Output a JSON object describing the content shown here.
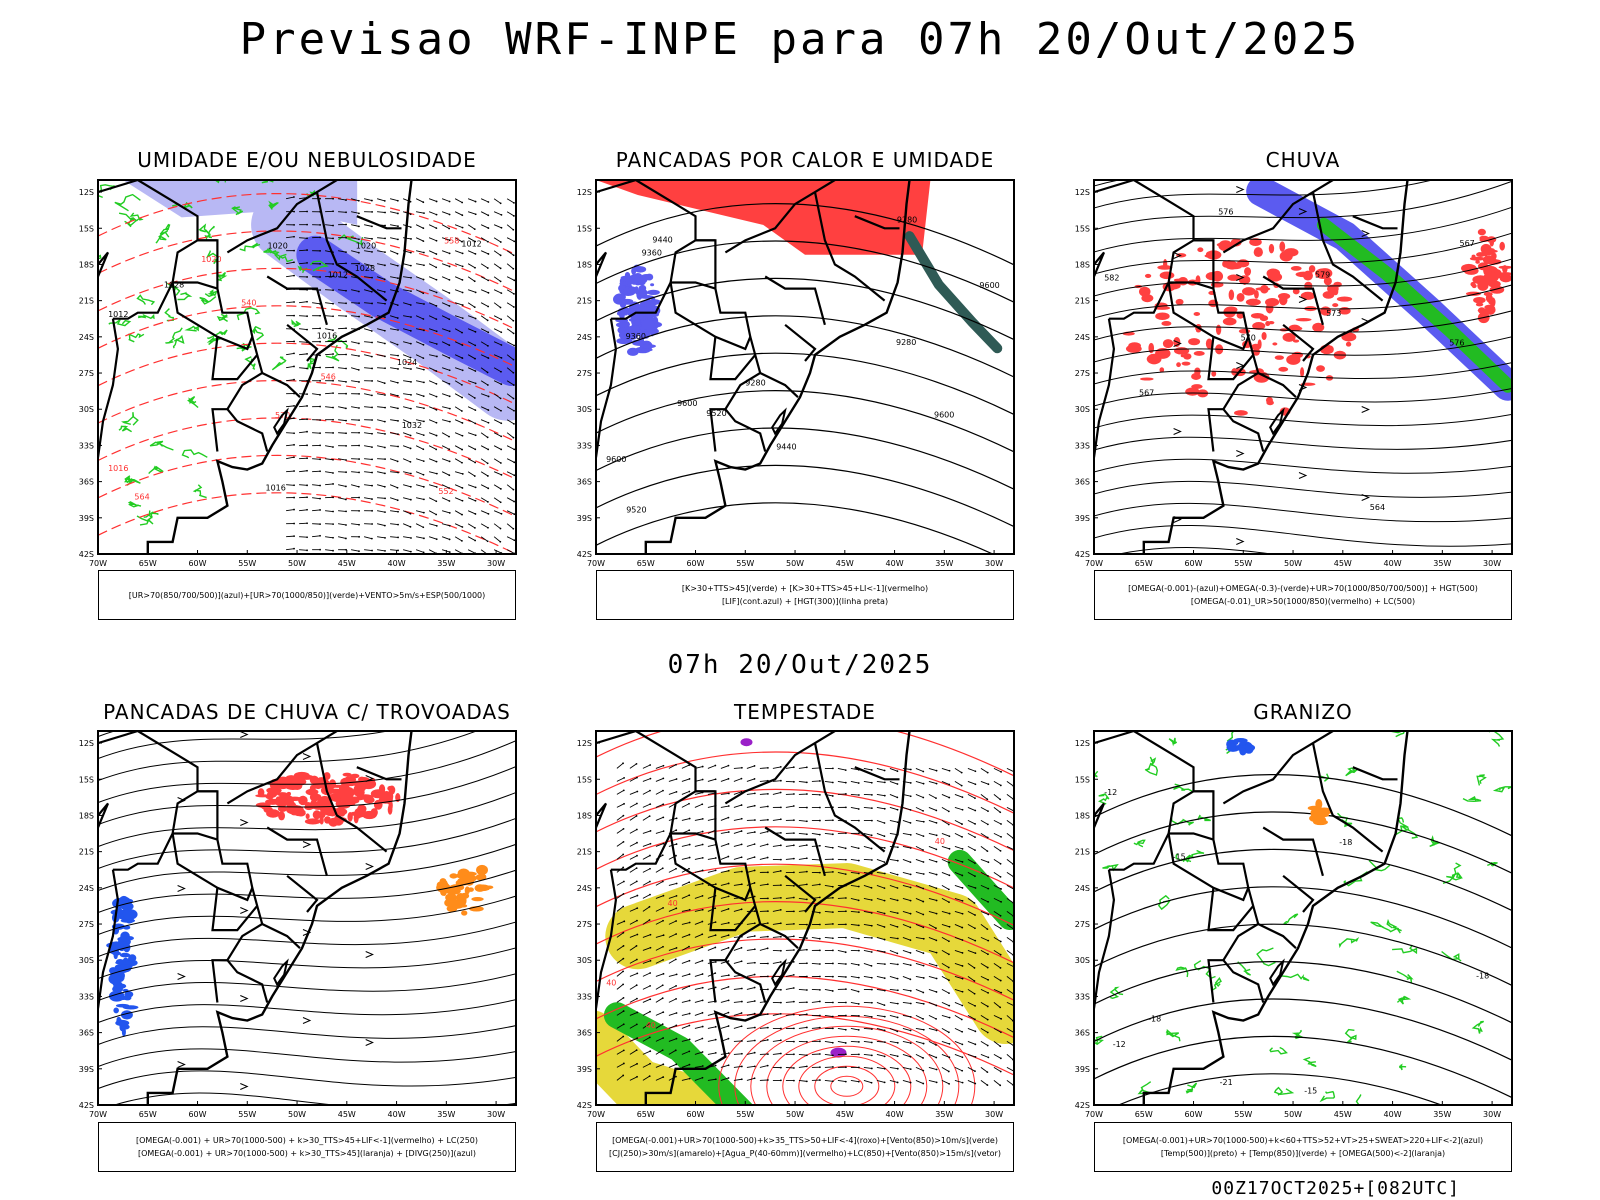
{
  "main_title": "Previsao WRF-INPE  para 07h 20/Out/2025",
  "mid_date": "07h 20/Out/2025",
  "footer": "00Z17OCT2025+[082UTC]",
  "axes": {
    "lat_labels": [
      "12S",
      "15S",
      "18S",
      "21S",
      "24S",
      "27S",
      "30S",
      "33S",
      "36S",
      "39S",
      "42S"
    ],
    "lon_labels": [
      "70W",
      "65W",
      "60W",
      "55W",
      "50W",
      "45W",
      "40W",
      "35W",
      "30W"
    ]
  },
  "panels": [
    {
      "id": "umidade",
      "title": "UMIDADE E/OU NEBULOSIDADE",
      "legend": [
        "[UR>70(850/700/500)](azul)+[UR>70(1000/850)](verde)+VENTO>5m/s+ESP(500/1000)"
      ],
      "contour_labels": [
        "1012",
        "1012",
        "1012",
        "1016",
        "1016",
        "1020",
        "1020",
        "1024",
        "1028",
        "1028",
        "1032",
        "1016",
        "1020",
        "570",
        "564",
        "558",
        "552",
        "546",
        "540"
      ]
    },
    {
      "id": "pancadas-calor",
      "title": "PANCADAS POR CALOR E UMIDADE",
      "legend": [
        "[K>30+TTS>45](verde) + [K>30+TTS>45+LI<-1](vermelho)",
        "[LIF](cont.azul) + [HGT(300)](linha preta)"
      ],
      "contour_labels": [
        "9600",
        "9600",
        "9600",
        "9600",
        "9520",
        "9520",
        "9440",
        "9440",
        "9360",
        "9360",
        "9280",
        "9280",
        "9280"
      ]
    },
    {
      "id": "chuva",
      "title": "CHUVA",
      "legend": [
        "[OMEGA(-0.001)-(azul)+OMEGA(-0.3)-(verde)+UR>70(1000/850/700/500)] + HGT(500)",
        "[OMEGA(-0.01)_UR>50(1000/850)(vermelho) + LC(500)"
      ],
      "contour_labels": [
        "582",
        "579",
        "576",
        "573",
        "570",
        "567",
        "564",
        "567",
        "576"
      ]
    },
    {
      "id": "pancadas-trovoadas",
      "title": "PANCADAS DE CHUVA C/ TROVOADAS",
      "legend": [
        "[OMEGA(-0.001) + UR>70(1000-500) + k>30_TTS>45+LIF<-1](vermelho) + LC(250)",
        "[OMEGA(-0.001) + UR>70(1000-500) + k>30_TTS>45](laranja) + [DIVG(250)](azul)"
      ],
      "contour_labels": []
    },
    {
      "id": "tempestade",
      "title": "TEMPESTADE",
      "legend": [
        "[OMEGA(-0.001)+UR>70(1000-500)+k>35_TTS>50+LIF<-4](roxo)+[Vento(850)>10m/s](verde)",
        "[CJ(250)>30m/s](amarelo)+[Agua_P(40-60mm)](vermelho)+LC(850)+[Vento(850)>15m/s](vetor)"
      ],
      "contour_labels": [
        "40",
        "40",
        "40",
        "40"
      ]
    },
    {
      "id": "granizo",
      "title": "GRANIZO",
      "legend": [
        "[OMEGA(-0.001)+UR>70(1000-500)+k<60+TTS>52+VT>25+SWEAT>220+LIF<-2](azul)",
        "[Temp(500)](preto) + [Temp(850)](verde) + [OMEGA(500)<-2](laranja)"
      ],
      "contour_labels": [
        "-12",
        "-15",
        "-12",
        "-18",
        "-21",
        "-15",
        "-18",
        "-18"
      ]
    }
  ],
  "colors": {
    "blue_fill": "#5b5bf0",
    "light_blue_fill": "#b8b8f4",
    "green_line": "#22cc22",
    "red_line": "#ff3030",
    "red_fill": "#ff4040",
    "dark_teal": "#2f5a55",
    "yellow_fill": "#e6d83a",
    "green_fill": "#22bb22",
    "orange": "#ff8c1a",
    "purple": "#9a20c8"
  }
}
